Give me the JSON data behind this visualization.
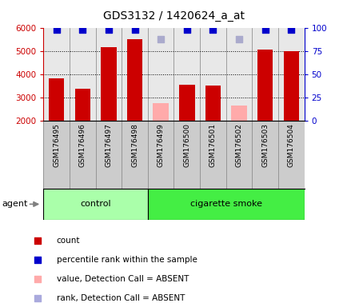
{
  "title": "GDS3132 / 1420624_a_at",
  "samples": [
    "GSM176495",
    "GSM176496",
    "GSM176497",
    "GSM176498",
    "GSM176499",
    "GSM176500",
    "GSM176501",
    "GSM176502",
    "GSM176503",
    "GSM176504"
  ],
  "counts": [
    3820,
    3380,
    5180,
    5520,
    null,
    3540,
    3520,
    null,
    5060,
    4980
  ],
  "absent_counts": [
    null,
    null,
    null,
    null,
    2760,
    null,
    null,
    2650,
    null,
    null
  ],
  "percentile_ranks": [
    96,
    95,
    97,
    97,
    null,
    96,
    96,
    null,
    97,
    96
  ],
  "absent_ranks": [
    null,
    null,
    null,
    null,
    88,
    null,
    null,
    87,
    null,
    null
  ],
  "control_indices": [
    0,
    1,
    2,
    3
  ],
  "smoke_indices": [
    4,
    5,
    6,
    7,
    8,
    9
  ],
  "ylim_left": [
    2000,
    6000
  ],
  "ylim_right": [
    0,
    100
  ],
  "yticks_left": [
    2000,
    3000,
    4000,
    5000,
    6000
  ],
  "yticks_right": [
    0,
    25,
    50,
    75,
    100
  ],
  "bar_color_present": "#cc0000",
  "bar_color_absent": "#ffaaaa",
  "dot_color_present": "#0000cc",
  "dot_color_absent": "#aaaacc",
  "control_bg_color": "#aaffaa",
  "smoke_bg_color": "#44ee44",
  "xtick_bg_color": "#cccccc",
  "agent_label": "agent",
  "control_label": "control",
  "smoke_label": "cigarette smoke",
  "legend_items": [
    {
      "color": "#cc0000",
      "label": "count"
    },
    {
      "color": "#0000cc",
      "label": "percentile rank within the sample"
    },
    {
      "color": "#ffaaaa",
      "label": "value, Detection Call = ABSENT"
    },
    {
      "color": "#aaaadd",
      "label": "rank, Detection Call = ABSENT"
    }
  ],
  "left_axis_color": "#cc0000",
  "right_axis_color": "#0000cc",
  "bar_width": 0.6,
  "dot_size": 28,
  "grid_lines": [
    3000,
    4000,
    5000
  ],
  "dot_rank_pct": 97.5,
  "absent_dot_rank_pct": 88.0
}
